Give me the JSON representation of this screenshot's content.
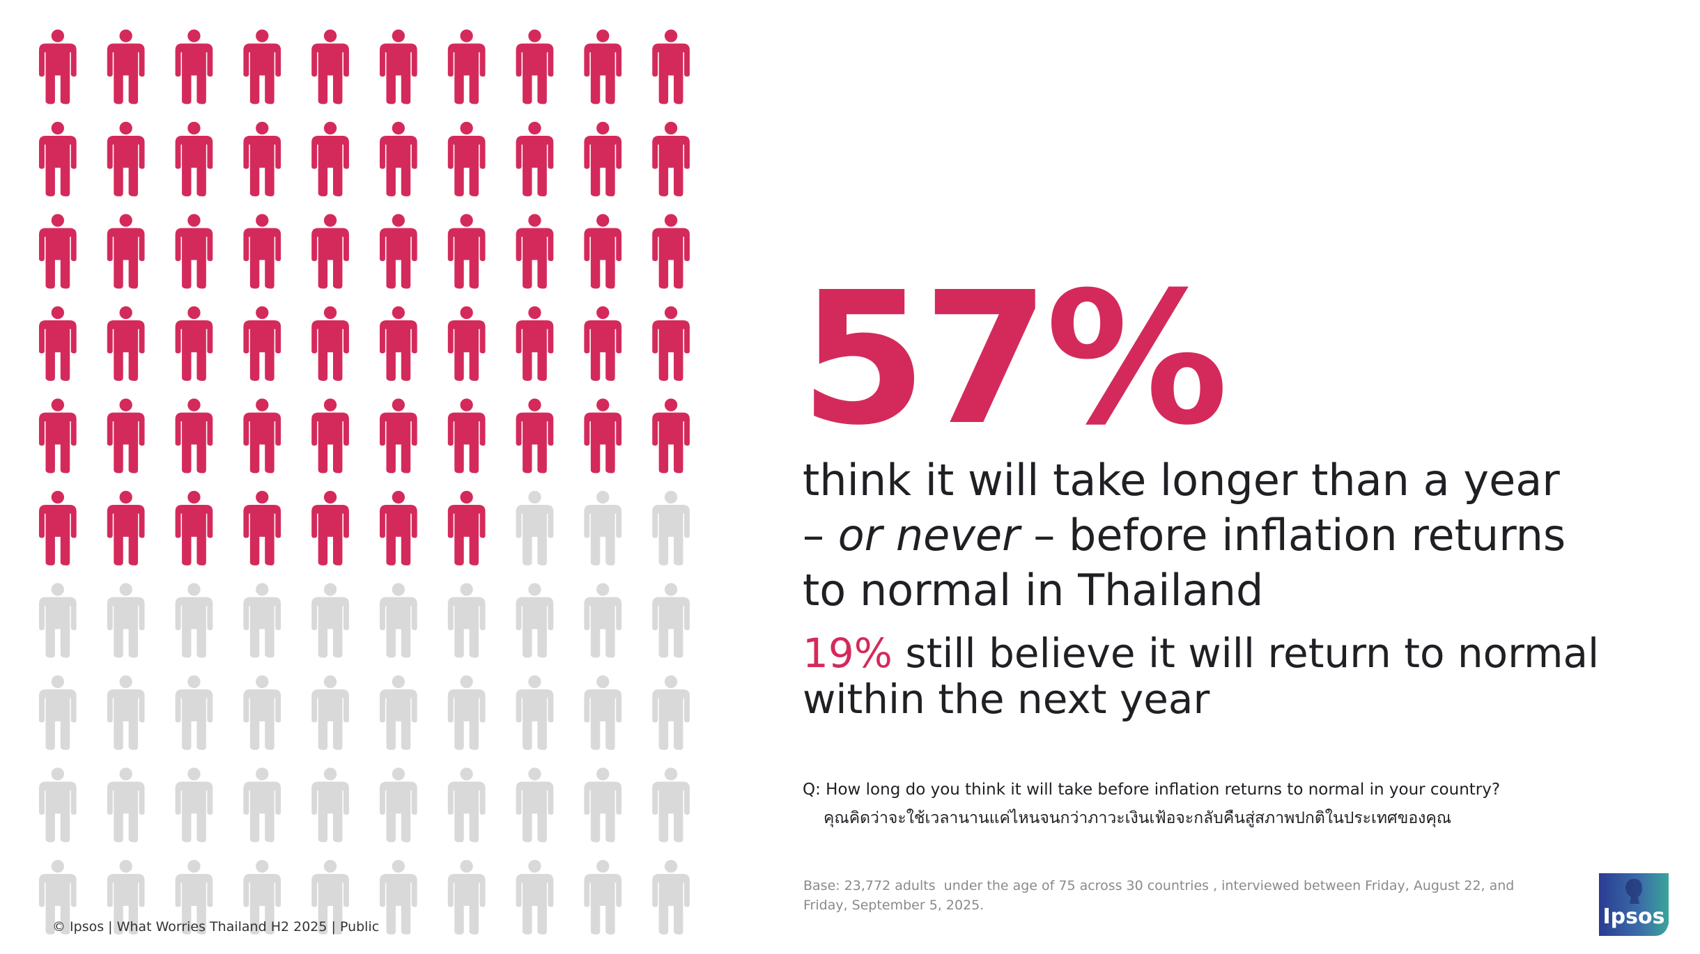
{
  "chart_data": {
    "type": "pictogram",
    "values": [
      57
    ],
    "value_labels": [
      "57%"
    ],
    "total": 100,
    "color": "#d42a5b",
    "empty_color": "#d9d9d9"
  },
  "headline": {
    "line1": "think it will take longer than a year",
    "dash1": "– ",
    "emphasis": "or never",
    "line2": " – before inflation returns",
    "line3": "to normal in Thailand"
  },
  "secondary": {
    "highlight": "19%",
    "line1": " still believe it will return to normal",
    "line2": "within the next year"
  },
  "question": {
    "english": "Q: How long do you think it will take before inflation returns to normal in your country?",
    "thai": "คุณคิดว่าจะใช้เวลานานแค่ไหนจนกว่าภาวะเงินเฟ้อจะกลับคืนสู่สภาพปกติในประเทศของคุณ"
  },
  "base": {
    "line1": "Base: 23,772 adults  under the age of 75 across 30 countries , interviewed between Friday, August 22, and",
    "line2": "Friday, September 5, 2025."
  },
  "footer": "© Ipsos | What Worries Thailand H2 2025 | Public",
  "logo": "Ipsos"
}
